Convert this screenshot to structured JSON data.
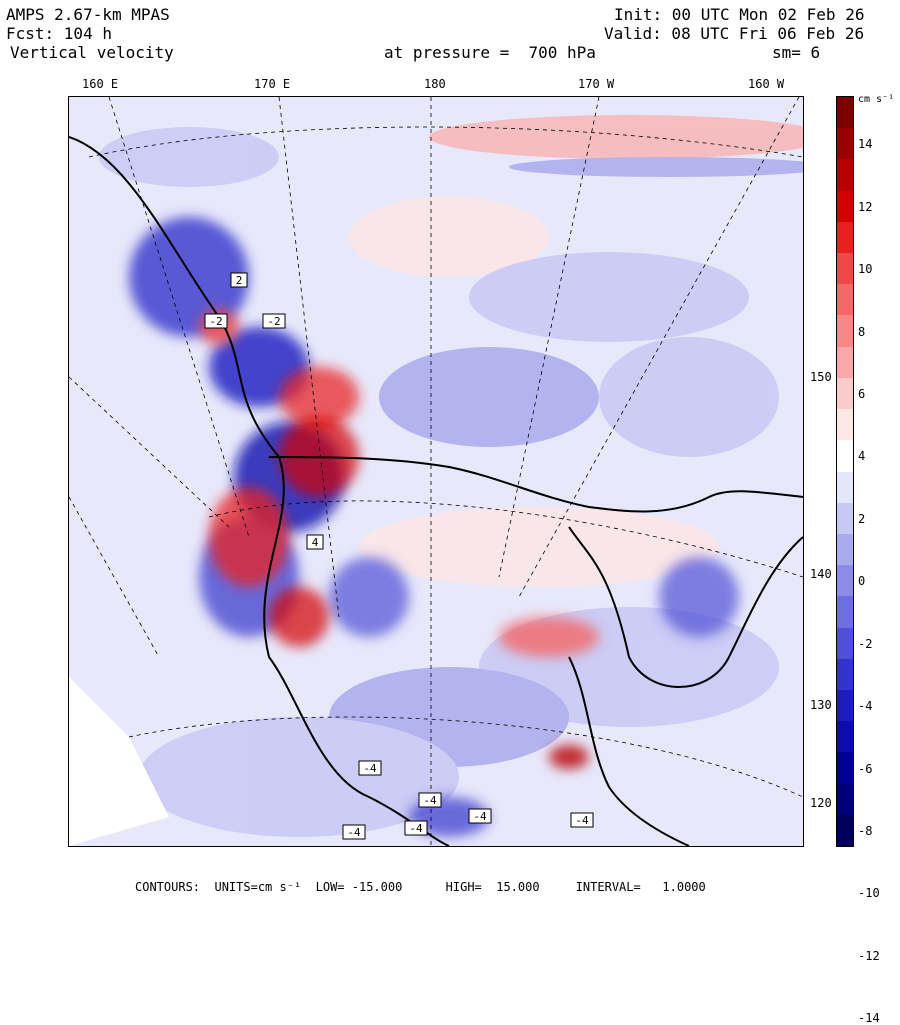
{
  "header": {
    "model": "AMPS 2.67-km MPAS",
    "forecast": "Fcst: 104 h",
    "field": "Vertical velocity",
    "init": "Init: 00 UTC Mon 02 Feb 26",
    "valid": "Valid: 08 UTC Fri 06 Feb 26",
    "pressure": "at pressure =  700 hPa",
    "smoothing": "sm= 6"
  },
  "map": {
    "lon_labels": [
      "160 E",
      "170 E",
      "180",
      "170 W",
      "160 W"
    ],
    "lat_labels": [
      "150 W",
      "140 W",
      "130 W",
      "120 W"
    ],
    "contour_labels": [
      "2",
      "-2",
      "-2",
      "4",
      "-4",
      "-4",
      "-4",
      "-4",
      "-4",
      "-4"
    ]
  },
  "colorbar": {
    "units": "cm s⁻¹",
    "ticks": [
      "14",
      "12",
      "10",
      "8",
      "6",
      "4",
      "2",
      "0",
      "-2",
      "-4",
      "-6",
      "-8",
      "-10",
      "-12",
      "-14"
    ],
    "colors": [
      "#7a0000",
      "#9a0000",
      "#b80000",
      "#d40000",
      "#e82020",
      "#f04848",
      "#f46868",
      "#f68888",
      "#f8a8a8",
      "#fbcaca",
      "#fde6e6",
      "#ffffff",
      "#e6e6fb",
      "#c8c8f4",
      "#aaaaee",
      "#8c8ce6",
      "#6e6ede",
      "#5050d6",
      "#3232cc",
      "#1c1cc0",
      "#0c0cae",
      "#000096",
      "#000078",
      "#00005a"
    ]
  },
  "footer": {
    "text": "CONTOURS:  UNITS=cm s⁻¹  LOW= -15.000      HIGH=  15.000     INTERVAL=   1.0000"
  }
}
